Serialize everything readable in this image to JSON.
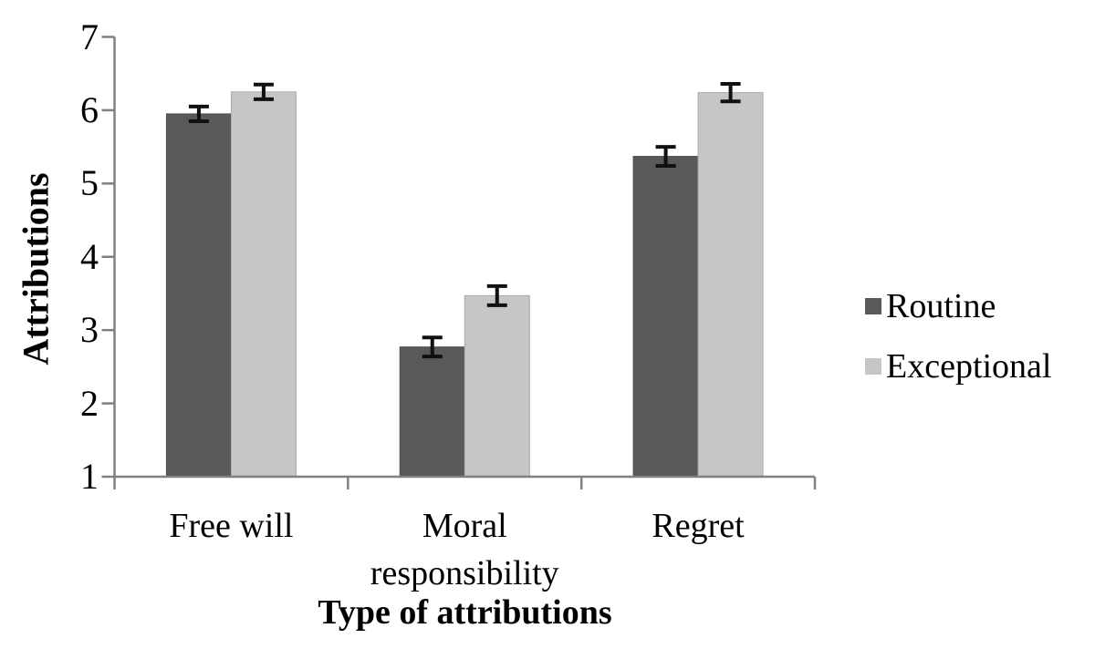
{
  "chart_data": {
    "type": "bar",
    "title": "",
    "xlabel": "Type of attributions",
    "ylabel": "Attributions",
    "categories": [
      "Free will",
      "Moral responsibility",
      "Regret"
    ],
    "series": [
      {
        "name": "Routine",
        "color": "#595959",
        "edge_color": "#4d4d4d",
        "values": [
          5.95,
          2.77,
          5.37
        ],
        "errors": [
          0.1,
          0.13,
          0.13
        ]
      },
      {
        "name": "Exceptional",
        "color": "#c6c6c6",
        "edge_color": "#a9a9a9",
        "values": [
          6.25,
          3.47,
          6.24
        ],
        "errors": [
          0.1,
          0.13,
          0.12
        ]
      }
    ],
    "ylim": [
      1,
      7
    ],
    "yticks": [
      1,
      2,
      3,
      4,
      5,
      6,
      7
    ],
    "grid": false,
    "legend_position": "right",
    "axis_color": "#808080",
    "error_bar_color": "#111111"
  }
}
